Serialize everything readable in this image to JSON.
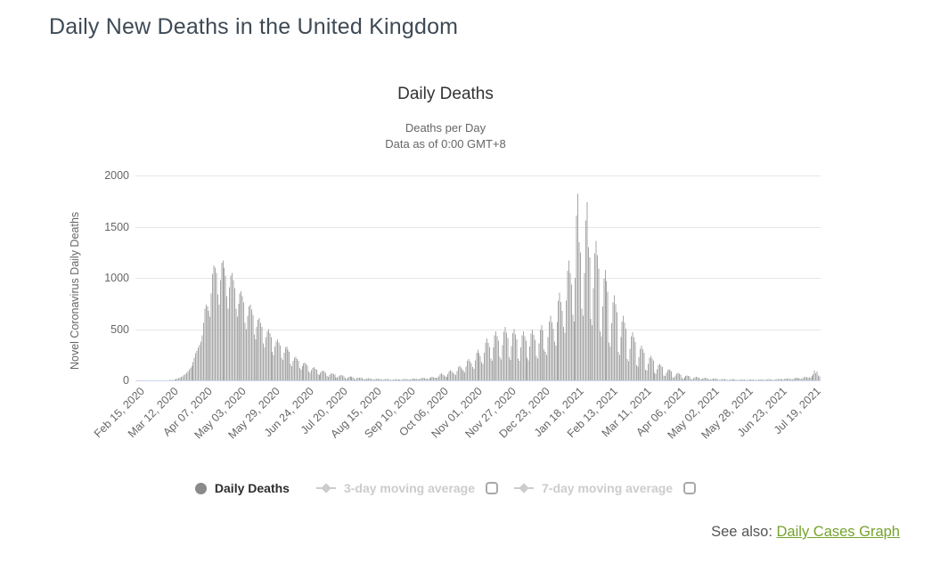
{
  "page": {
    "title": "Daily New Deaths in the United Kingdom",
    "see_also_label": "See also: ",
    "see_also_link": "Daily Cases Graph"
  },
  "chart": {
    "title": "Daily Deaths",
    "subtitle_line1": "Deaths per Day",
    "subtitle_line2": "Data as of 0:00 GMT+8",
    "y_axis_title": "Novel Coronavirus Daily Deaths",
    "y_ticks": [
      0,
      500,
      1000,
      1500,
      2000
    ],
    "x_ticks": [
      "Feb 15, 2020",
      "Mar 12, 2020",
      "Apr 07, 2020",
      "May 03, 2020",
      "May 29, 2020",
      "Jun 24, 2020",
      "Jul 20, 2020",
      "Aug 15, 2020",
      "Sep 10, 2020",
      "Oct 06, 2020",
      "Nov 01, 2020",
      "Nov 27, 2020",
      "Dec 23, 2020",
      "Jan 18, 2021",
      "Feb 13, 2021",
      "Mar 11, 2021",
      "Apr 06, 2021",
      "May 02, 2021",
      "May 28, 2021",
      "Jun 23, 2021",
      "Jul 19, 2021"
    ],
    "legend": [
      {
        "label": "Daily Deaths",
        "marker": "circle",
        "enabled": true,
        "has_checkbox": false
      },
      {
        "label": "3-day moving average",
        "marker": "line-diamond",
        "enabled": false,
        "has_checkbox": true,
        "checked": false
      },
      {
        "label": "7-day moving average",
        "marker": "line-diamond",
        "enabled": false,
        "has_checkbox": true,
        "checked": false
      }
    ],
    "colors": {
      "bar": "#a6a6a6",
      "gridline": "#e6e6e6",
      "axis_line": "#ccd6eb",
      "tick_text": "#666666",
      "title_text": "#333333",
      "disabled_legend": "#cccccc",
      "legend_marker": "#8a8a8a",
      "link_green": "#75a32c",
      "page_title": "#3e4a55"
    }
  },
  "chart_data": {
    "type": "bar",
    "title": "Daily Deaths",
    "xlabel": "",
    "ylabel": "Novel Coronavirus Daily Deaths",
    "ylim": [
      0,
      2000
    ],
    "y_tick_interval": 500,
    "x_unit": "day",
    "x_start": "Feb 15, 2020",
    "x_end": "Jul 25, 2021",
    "x_tick_interval_days": 26,
    "x_tick_labels": [
      "Feb 15, 2020",
      "Mar 12, 2020",
      "Apr 07, 2020",
      "May 03, 2020",
      "May 29, 2020",
      "Jun 24, 2020",
      "Jul 20, 2020",
      "Aug 15, 2020",
      "Sep 10, 2020",
      "Oct 06, 2020",
      "Nov 01, 2020",
      "Nov 27, 2020",
      "Dec 23, 2020",
      "Jan 18, 2021",
      "Feb 13, 2021",
      "Mar 11, 2021",
      "Apr 06, 2021",
      "May 02, 2021",
      "May 28, 2021",
      "Jun 23, 2021",
      "Jul 19, 2021"
    ],
    "legend_position": "bottom",
    "grid": true,
    "hidden_series": [
      "3-day moving average",
      "7-day moving average"
    ],
    "series": [
      {
        "name": "Daily Deaths",
        "values": [
          0,
          0,
          0,
          0,
          0,
          0,
          0,
          0,
          0,
          0,
          0,
          0,
          0,
          0,
          0,
          0,
          0,
          0,
          0,
          1,
          1,
          1,
          0,
          1,
          2,
          2,
          3,
          4,
          5,
          6,
          10,
          14,
          18,
          22,
          27,
          33,
          40,
          54,
          60,
          74,
          87,
          103,
          120,
          140,
          180,
          220,
          266,
          290,
          320,
          350,
          380,
          440,
          560,
          700,
          740,
          720,
          680,
          620,
          850,
          1040,
          1120,
          1100,
          1050,
          840,
          740,
          980,
          1150,
          1170,
          1100,
          1020,
          820,
          700,
          910,
          1020,
          1050,
          980,
          900,
          700,
          620,
          750,
          850,
          870,
          820,
          760,
          560,
          500,
          630,
          720,
          740,
          690,
          640,
          450,
          400,
          520,
          590,
          610,
          560,
          520,
          360,
          320,
          420,
          480,
          500,
          460,
          420,
          280,
          250,
          330,
          380,
          400,
          370,
          340,
          220,
          200,
          270,
          320,
          330,
          300,
          280,
          160,
          140,
          190,
          220,
          230,
          210,
          190,
          120,
          105,
          140,
          165,
          175,
          160,
          145,
          85,
          75,
          100,
          120,
          130,
          115,
          105,
          60,
          52,
          72,
          88,
          95,
          85,
          75,
          42,
          37,
          52,
          64,
          70,
          62,
          55,
          30,
          26,
          38,
          48,
          52,
          46,
          40,
          22,
          19,
          28,
          35,
          38,
          33,
          29,
          16,
          14,
          20,
          26,
          28,
          24,
          21,
          12,
          10,
          15,
          19,
          21,
          18,
          16,
          9,
          8,
          12,
          15,
          16,
          14,
          12,
          7,
          6,
          9,
          12,
          13,
          11,
          10,
          6,
          5,
          8,
          10,
          11,
          10,
          9,
          7,
          6,
          9,
          12,
          13,
          12,
          10,
          9,
          8,
          12,
          16,
          18,
          15,
          13,
          12,
          11,
          16,
          22,
          25,
          21,
          18,
          17,
          15,
          23,
          32,
          36,
          31,
          27,
          28,
          24,
          40,
          60,
          68,
          58,
          50,
          40,
          35,
          60,
          88,
          98,
          85,
          75,
          60,
          52,
          90,
          130,
          145,
          125,
          110,
          90,
          78,
          135,
          190,
          210,
          185,
          165,
          130,
          115,
          195,
          270,
          300,
          265,
          235,
          180,
          160,
          270,
          370,
          410,
          365,
          325,
          215,
          190,
          320,
          440,
          480,
          430,
          385,
          230,
          205,
          345,
          475,
          520,
          465,
          415,
          225,
          200,
          335,
          460,
          500,
          450,
          400,
          215,
          190,
          320,
          440,
          480,
          430,
          385,
          220,
          195,
          330,
          455,
          495,
          445,
          395,
          240,
          215,
          360,
          495,
          540,
          485,
          300,
          280,
          250,
          420,
          575,
          630,
          565,
          505,
          380,
          340,
          570,
          780,
          855,
          765,
          680,
          520,
          465,
          780,
          1070,
          1170,
          1050,
          935,
          640,
          575,
          1000,
          1610,
          1820,
          1350,
          1250,
          700,
          630,
          1050,
          1560,
          1740,
          1300,
          1200,
          600,
          540,
          900,
          1240,
          1360,
          1220,
          1090,
          480,
          430,
          720,
          990,
          1080,
          970,
          865,
          370,
          330,
          555,
          760,
          830,
          745,
          665,
          280,
          250,
          420,
          575,
          630,
          565,
          505,
          210,
          185,
          310,
          430,
          470,
          420,
          375,
          150,
          135,
          225,
          310,
          340,
          305,
          270,
          105,
          95,
          160,
          220,
          240,
          215,
          190,
          72,
          64,
          108,
          148,
          162,
          145,
          130,
          48,
          42,
          72,
          100,
          110,
          98,
          87,
          32,
          28,
          48,
          66,
          72,
          64,
          57,
          22,
          19,
          32,
          44,
          48,
          43,
          38,
          15,
          13,
          22,
          30,
          33,
          29,
          26,
          11,
          9,
          16,
          22,
          24,
          21,
          19,
          8,
          7,
          12,
          16,
          18,
          16,
          14,
          6,
          5,
          9,
          12,
          13,
          12,
          10,
          5,
          4,
          7,
          10,
          11,
          9,
          8,
          4,
          4,
          6,
          9,
          10,
          8,
          7,
          4,
          3,
          6,
          8,
          9,
          8,
          7,
          4,
          4,
          6,
          9,
          10,
          9,
          8,
          5,
          4,
          7,
          10,
          11,
          10,
          9,
          6,
          5,
          9,
          12,
          14,
          12,
          11,
          8,
          7,
          12,
          16,
          18,
          16,
          14,
          11,
          10,
          16,
          22,
          25,
          22,
          20,
          16,
          14,
          23,
          32,
          35,
          31,
          28,
          30,
          26,
          44,
          60,
          96,
          68,
          85,
          48,
          40
        ]
      }
    ]
  }
}
